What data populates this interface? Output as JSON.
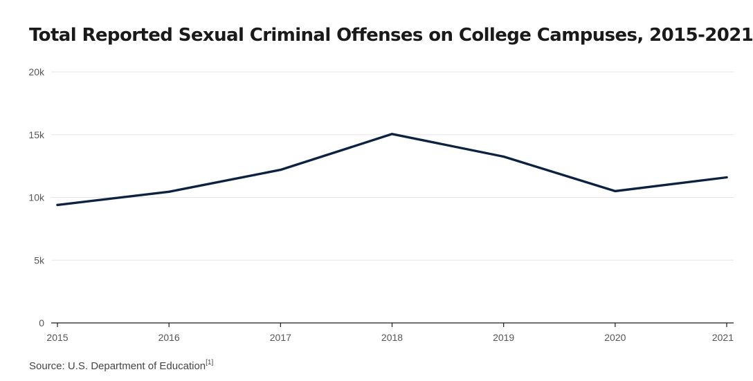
{
  "title": "Total Reported Sexual Criminal Offenses on College Campuses, 2015-2021",
  "source": {
    "text": "Source: U.S. Department of Education",
    "footnote": "[1]"
  },
  "colors": {
    "line": "#0d2240",
    "grid": "#e6e6e6",
    "axis": "#1a1a1a",
    "tick_text": "#555555"
  },
  "chart_data": {
    "type": "line",
    "title": "Total Reported Sexual Criminal Offenses on College Campuses, 2015-2021",
    "xlabel": "",
    "ylabel": "",
    "x": [
      "2015",
      "2016",
      "2017",
      "2018",
      "2019",
      "2020",
      "2021"
    ],
    "series": [
      {
        "values": [
          9400,
          10450,
          12200,
          15050,
          13250,
          10500,
          11600
        ]
      }
    ],
    "ylim": [
      0,
      20000
    ],
    "yticks": [
      0,
      5000,
      10000,
      15000,
      20000
    ],
    "ytick_labels": [
      "0",
      "5k",
      "10k",
      "15k",
      "20k"
    ],
    "grid": true,
    "legend": "none"
  }
}
